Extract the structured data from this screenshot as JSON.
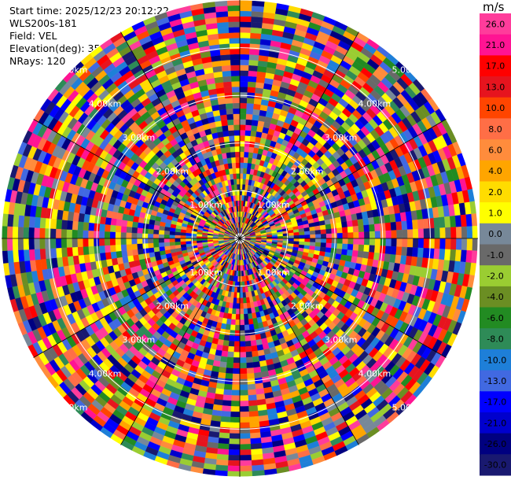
{
  "info": {
    "start_time": "Start time: 2025/12/23 20:12:22",
    "instrument": "WLS200s-181",
    "field": "Field: VEL",
    "elevation": "Elevation(deg): 35.00",
    "nrays": "NRays: 120"
  },
  "colorbar": {
    "unit": "m/s",
    "ticks": [
      "26.0",
      "21.0",
      "17.0",
      "13.0",
      "10.0",
      "8.0",
      "6.0",
      "4.0",
      "2.0",
      "1.0",
      "0.0",
      "-1.0",
      "-2.0",
      "-4.0",
      "-6.0",
      "-8.0",
      "-10.0",
      "-13.0",
      "-17.0",
      "-21.0",
      "-26.0",
      "-30.0"
    ],
    "colors": [
      "#ff3c9b",
      "#ff1493",
      "#ff0000",
      "#e6141e",
      "#ff4500",
      "#ff6e46",
      "#ff8c3c",
      "#ffa500",
      "#ffdc00",
      "#ffff00",
      "#778899",
      "#696969",
      "#9acd32",
      "#6b8e23",
      "#228b22",
      "#2e8b57",
      "#1e7fd8",
      "#4169e1",
      "#0000ff",
      "#0000cd",
      "#000080",
      "#191970"
    ]
  },
  "chart_data": {
    "type": "heatmap",
    "projection": "polar (PPI)",
    "field": "VEL",
    "nrays": 120,
    "range_ring_labels": [
      "1.00km",
      "2.00km",
      "3.00km",
      "4.00km",
      "5.00km"
    ],
    "ring_label_angles_deg": [
      45,
      135,
      225,
      315
    ],
    "azimuth_lines": 12,
    "value_range": [
      -30.0,
      26.0
    ],
    "note_values": "velocity field appears as random-valued range gates across all rays"
  }
}
